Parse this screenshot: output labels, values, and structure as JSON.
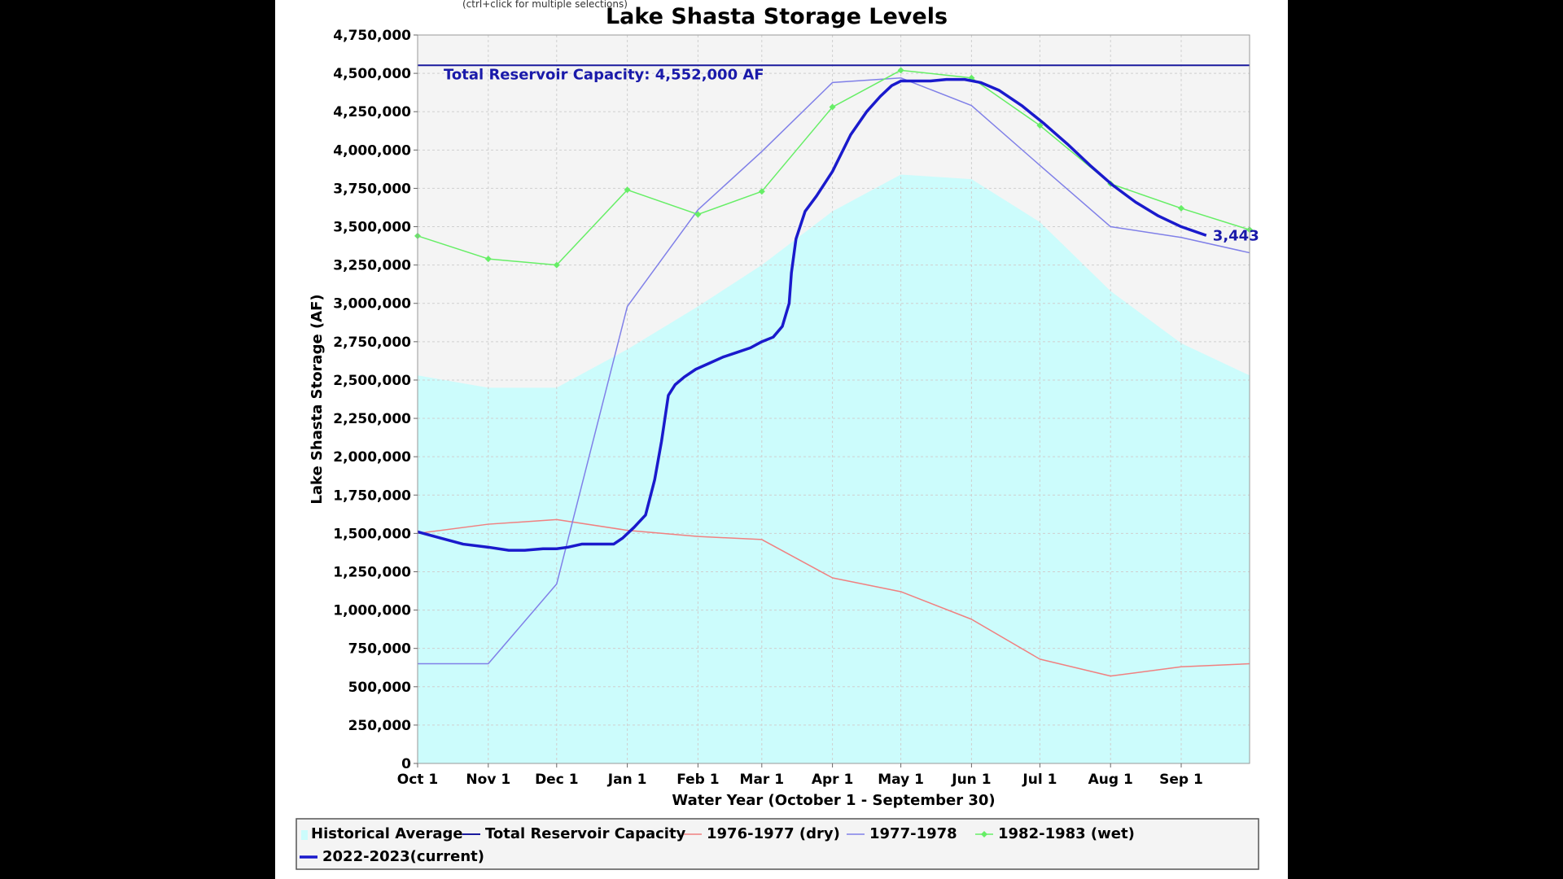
{
  "page": {
    "hint": "(ctrl+click for multiple selections)"
  },
  "chart_data": {
    "type": "line",
    "title": "Lake Shasta Storage Levels",
    "xlabel": "Water Year (October 1 - September 30)",
    "ylabel": "Lake Shasta Storage (AF)",
    "xlim": [
      0,
      365
    ],
    "ylim": [
      0,
      4750000
    ],
    "y_ticks": [
      0,
      250000,
      500000,
      750000,
      1000000,
      1250000,
      1500000,
      1750000,
      2000000,
      2250000,
      2500000,
      2750000,
      3000000,
      3250000,
      3500000,
      3750000,
      4000000,
      4250000,
      4500000,
      4750000
    ],
    "y_tick_labels": [
      "0",
      "250,000",
      "500,000",
      "750,000",
      "1,000,000",
      "1,250,000",
      "1,500,000",
      "1,750,000",
      "2,000,000",
      "2,250,000",
      "2,500,000",
      "2,750,000",
      "3,000,000",
      "3,250,000",
      "3,500,000",
      "3,750,000",
      "4,000,000",
      "4,250,000",
      "4,500,000",
      "4,750,000"
    ],
    "x_ticks": [
      {
        "day": 0,
        "label": "Oct 1"
      },
      {
        "day": 31,
        "label": "Nov 1"
      },
      {
        "day": 61,
        "label": "Dec 1"
      },
      {
        "day": 92,
        "label": "Jan 1"
      },
      {
        "day": 123,
        "label": "Feb 1"
      },
      {
        "day": 151,
        "label": "Mar 1"
      },
      {
        "day": 182,
        "label": "Apr 1"
      },
      {
        "day": 212,
        "label": "May 1"
      },
      {
        "day": 243,
        "label": "Jun 1"
      },
      {
        "day": 273,
        "label": "Jul 1"
      },
      {
        "day": 304,
        "label": "Aug 1"
      },
      {
        "day": 335,
        "label": "Sep 1"
      }
    ],
    "grid": true,
    "legend_position": "bottom",
    "capacity": {
      "name": "Total Reservoir Capacity",
      "value": 4552000,
      "label": "Total Reservoir Capacity: 4,552,000 AF",
      "color": "#1a1a9e"
    },
    "end_label": "3,443",
    "series": [
      {
        "name": "Historical Average",
        "type": "area",
        "color": "#ccfcfc",
        "x": [
          0,
          31,
          61,
          92,
          123,
          151,
          182,
          212,
          243,
          273,
          304,
          335,
          365
        ],
        "y": [
          2530000,
          2450000,
          2450000,
          2700000,
          2980000,
          3250000,
          3600000,
          3840000,
          3810000,
          3530000,
          3080000,
          2740000,
          2530000
        ]
      },
      {
        "name": "1976-1977 (dry)",
        "type": "line",
        "color": "#f08080",
        "width": 1.5,
        "x": [
          0,
          31,
          61,
          92,
          123,
          151,
          182,
          212,
          243,
          273,
          304,
          335,
          365
        ],
        "y": [
          1500000,
          1560000,
          1590000,
          1520000,
          1480000,
          1460000,
          1210000,
          1120000,
          940000,
          680000,
          570000,
          630000,
          650000
        ]
      },
      {
        "name": "1977-1978",
        "type": "line",
        "color": "#8080e8",
        "width": 1.5,
        "x": [
          0,
          31,
          61,
          92,
          123,
          151,
          182,
          212,
          243,
          273,
          304,
          335,
          365
        ],
        "y": [
          650000,
          650000,
          1170000,
          2980000,
          3610000,
          3990000,
          4440000,
          4470000,
          4290000,
          3900000,
          3500000,
          3430000,
          3330000
        ]
      },
      {
        "name": "1982-1983 (wet)",
        "type": "line",
        "color": "#66ee66",
        "width": 1.5,
        "markers": true,
        "x": [
          0,
          31,
          61,
          92,
          123,
          151,
          182,
          212,
          243,
          273,
          304,
          335,
          365
        ],
        "y": [
          3440000,
          3290000,
          3250000,
          3740000,
          3580000,
          3730000,
          4280000,
          4520000,
          4470000,
          4160000,
          3780000,
          3620000,
          3480000
        ]
      },
      {
        "name": "2022-2023(current)",
        "type": "line",
        "color": "#1a1acc",
        "width": 3.5,
        "x": [
          0,
          10,
          20,
          31,
          40,
          47,
          55,
          61,
          66,
          72,
          80,
          86,
          90,
          95,
          100,
          104,
          107,
          110,
          113,
          117,
          122,
          128,
          134,
          140,
          146,
          151,
          156,
          160,
          163,
          164,
          166,
          170,
          175,
          182,
          190,
          197,
          203,
          208,
          212,
          217,
          225,
          232,
          240,
          247,
          255,
          265,
          275,
          285,
          295,
          305,
          315,
          325,
          335,
          346
        ],
        "y": [
          1510000,
          1470000,
          1430000,
          1410000,
          1390000,
          1390000,
          1400000,
          1400000,
          1410000,
          1430000,
          1430000,
          1430000,
          1470000,
          1540000,
          1620000,
          1850000,
          2100000,
          2400000,
          2470000,
          2520000,
          2570000,
          2610000,
          2650000,
          2680000,
          2710000,
          2750000,
          2780000,
          2850000,
          3000000,
          3200000,
          3420000,
          3600000,
          3700000,
          3860000,
          4100000,
          4250000,
          4350000,
          4420000,
          4450000,
          4450000,
          4450000,
          4460000,
          4460000,
          4440000,
          4390000,
          4290000,
          4170000,
          4040000,
          3900000,
          3770000,
          3660000,
          3570000,
          3500000,
          3443000
        ]
      }
    ]
  }
}
